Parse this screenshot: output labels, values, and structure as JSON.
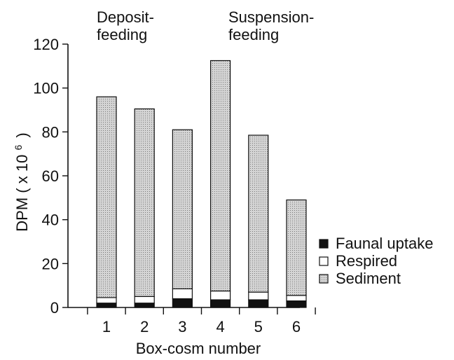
{
  "chart_data": {
    "type": "bar",
    "stacked": true,
    "categories": [
      "1",
      "2",
      "3",
      "4",
      "5",
      "6"
    ],
    "series": [
      {
        "name": "Faunal uptake",
        "color": "#111111",
        "values": [
          2.0,
          2.0,
          4.0,
          3.5,
          3.5,
          3.0
        ]
      },
      {
        "name": "Respired",
        "color": "#ffffff",
        "values": [
          2.5,
          3.0,
          4.5,
          4.0,
          3.5,
          2.5
        ]
      },
      {
        "name": "Sediment",
        "color": "#c9c9c9",
        "values": [
          91.5,
          85.5,
          72.5,
          105.0,
          71.5,
          43.5
        ]
      }
    ],
    "totals": [
      96,
      90.5,
      81,
      112.5,
      78.5,
      49
    ],
    "xlabel": "Box-cosm number",
    "ylabel": "DPM ( x 10",
    "ylabel_exponent": "6",
    "ylabel_close": ")",
    "ylim": [
      0,
      120
    ],
    "yticks": [
      "0",
      "20",
      "40",
      "60",
      "80",
      "100",
      "120"
    ],
    "grid": false,
    "legend_position": "bottom-right"
  },
  "annotations": [
    {
      "line1": "Deposit-",
      "line2": "feeding"
    },
    {
      "line1": "Suspension-",
      "line2": "feeding"
    }
  ]
}
